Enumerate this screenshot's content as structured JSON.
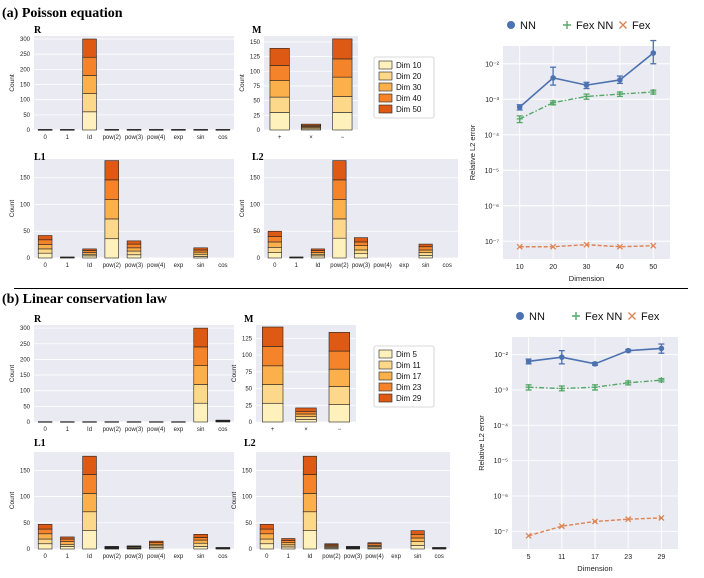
{
  "section_a": {
    "title": "(a) Poisson equation"
  },
  "section_b": {
    "title": "(b) Linear conservation law"
  },
  "ops_unary": [
    "0",
    "1",
    "Id",
    "pow(2)",
    "pow(3)",
    "pow(4)",
    "exp",
    "sin",
    "cos"
  ],
  "ops_binary": [
    "+",
    "×",
    "−"
  ],
  "count_label": "Count",
  "colors": {
    "stack": [
      "#fff1bb",
      "#fdd78a",
      "#fbb04c",
      "#f5832a",
      "#de5a14"
    ],
    "nn": "#4c72b0",
    "fexnn": "#55a868",
    "fex": "#dd8452",
    "panel_bg": "#eaeaf2",
    "grid": "#ffffff",
    "edge": "#222222"
  },
  "chart_data": [
    {
      "id": "a_R",
      "type": "bar",
      "stacked": true,
      "title": "R",
      "ylabel": "Count",
      "categories": [
        "0",
        "1",
        "Id",
        "pow(2)",
        "pow(3)",
        "pow(4)",
        "exp",
        "sin",
        "cos"
      ],
      "ylim": [
        0,
        310
      ],
      "yticks": [
        0,
        50,
        100,
        150,
        200,
        250,
        300
      ],
      "series": [
        {
          "name": "Dim 10",
          "values": [
            1,
            1,
            60,
            1,
            1,
            1,
            1,
            1,
            1
          ]
        },
        {
          "name": "Dim 20",
          "values": [
            0,
            0,
            60,
            0,
            0,
            0,
            0,
            0,
            0
          ]
        },
        {
          "name": "Dim 30",
          "values": [
            0,
            0,
            60,
            0,
            0,
            0,
            0,
            0,
            0
          ]
        },
        {
          "name": "Dim 40",
          "values": [
            1,
            1,
            60,
            1,
            1,
            1,
            1,
            1,
            1
          ]
        },
        {
          "name": "Dim 50",
          "values": [
            0,
            0,
            60,
            0,
            0,
            0,
            0,
            0,
            0
          ]
        }
      ]
    },
    {
      "id": "a_M",
      "type": "bar",
      "stacked": true,
      "title": "M",
      "ylabel": "Count",
      "categories": [
        "+",
        "×",
        "−"
      ],
      "ylim": [
        0,
        160
      ],
      "yticks": [
        0,
        25,
        50,
        75,
        100,
        125,
        150
      ],
      "series": [
        {
          "name": "Dim 10",
          "values": [
            30,
            2,
            30
          ]
        },
        {
          "name": "Dim 20",
          "values": [
            26,
            2,
            27
          ]
        },
        {
          "name": "Dim 30",
          "values": [
            28,
            2,
            33
          ]
        },
        {
          "name": "Dim 40",
          "values": [
            26,
            2,
            31
          ]
        },
        {
          "name": "Dim 50",
          "values": [
            29,
            2,
            34
          ]
        }
      ]
    },
    {
      "id": "a_L1",
      "type": "bar",
      "stacked": true,
      "title": "L1",
      "ylabel": "Count",
      "categories": [
        "0",
        "1",
        "Id",
        "pow(2)",
        "pow(3)",
        "pow(4)",
        "exp",
        "sin",
        "cos"
      ],
      "ylim": [
        0,
        185
      ],
      "yticks": [
        0,
        50,
        100,
        150
      ],
      "series": [
        {
          "name": "Dim 10",
          "values": [
            9,
            0,
            4,
            36,
            6,
            0,
            0,
            3,
            0
          ]
        },
        {
          "name": "Dim 20",
          "values": [
            8,
            1,
            3,
            37,
            7,
            0,
            0,
            4,
            0
          ]
        },
        {
          "name": "Dim 30",
          "values": [
            8,
            0,
            3,
            36,
            6,
            0,
            0,
            4,
            0
          ]
        },
        {
          "name": "Dim 40",
          "values": [
            9,
            1,
            4,
            37,
            7,
            0,
            0,
            4,
            0
          ]
        },
        {
          "name": "Dim 50",
          "values": [
            8,
            0,
            3,
            36,
            6,
            0,
            0,
            4,
            0
          ]
        }
      ]
    },
    {
      "id": "a_L2",
      "type": "bar",
      "stacked": true,
      "title": "L2",
      "ylabel": "Count",
      "categories": [
        "0",
        "1",
        "Id",
        "pow(2)",
        "pow(3)",
        "pow(4)",
        "exp",
        "sin",
        "cos"
      ],
      "ylim": [
        0,
        185
      ],
      "yticks": [
        0,
        50,
        100,
        150
      ],
      "series": [
        {
          "name": "Dim 10",
          "values": [
            10,
            1,
            4,
            37,
            8,
            0,
            0,
            5,
            0
          ]
        },
        {
          "name": "Dim 20",
          "values": [
            10,
            0,
            3,
            36,
            7,
            0,
            0,
            5,
            0
          ]
        },
        {
          "name": "Dim 30",
          "values": [
            10,
            1,
            3,
            36,
            8,
            0,
            0,
            5,
            0
          ]
        },
        {
          "name": "Dim 40",
          "values": [
            10,
            0,
            4,
            37,
            7,
            0,
            0,
            6,
            0
          ]
        },
        {
          "name": "Dim 50",
          "values": [
            10,
            0,
            3,
            36,
            8,
            0,
            0,
            5,
            0
          ]
        }
      ]
    },
    {
      "id": "a_err",
      "type": "line",
      "ylabel": "Relative L2 error",
      "xlabel": "Dimension",
      "x": [
        10,
        20,
        30,
        40,
        50
      ],
      "yscale": "log",
      "series": [
        {
          "name": "NN",
          "values": [
            0.0006,
            0.004,
            0.0025,
            0.0035,
            0.02
          ],
          "err_low": [
            0.0005,
            0.0025,
            0.002,
            0.0028,
            0.01
          ],
          "err_high": [
            0.0007,
            0.008,
            0.003,
            0.0045,
            0.045
          ]
        },
        {
          "name": "Fex NN",
          "values": [
            0.00028,
            0.0008,
            0.0012,
            0.0014,
            0.0016
          ],
          "err_low": [
            0.00022,
            0.0007,
            0.001,
            0.0012,
            0.0014
          ],
          "err_high": [
            0.00034,
            0.0009,
            0.0014,
            0.0016,
            0.0018
          ]
        },
        {
          "name": "Fex",
          "values": [
            7e-08,
            7e-08,
            8e-08,
            7e-08,
            7.5e-08
          ]
        }
      ],
      "yticks": [
        "10⁻²",
        "10⁻³",
        "10⁻⁴",
        "10⁻⁵",
        "10⁻⁶",
        "10⁻⁷"
      ]
    },
    {
      "id": "b_R",
      "type": "bar",
      "stacked": true,
      "title": "R",
      "ylabel": "Count",
      "categories": [
        "0",
        "1",
        "Id",
        "pow(2)",
        "pow(3)",
        "pow(4)",
        "exp",
        "sin",
        "cos"
      ],
      "ylim": [
        0,
        310
      ],
      "yticks": [
        0,
        50,
        100,
        150,
        200,
        250,
        300
      ],
      "series": [
        {
          "name": "Dim 5",
          "values": [
            1,
            1,
            1,
            1,
            1,
            1,
            1,
            60,
            2
          ]
        },
        {
          "name": "Dim 11",
          "values": [
            0,
            0,
            0,
            0,
            0,
            0,
            0,
            60,
            1
          ]
        },
        {
          "name": "Dim 17",
          "values": [
            0,
            0,
            0,
            0,
            0,
            0,
            0,
            60,
            1
          ]
        },
        {
          "name": "Dim 23",
          "values": [
            0,
            0,
            0,
            0,
            0,
            0,
            0,
            60,
            1
          ]
        },
        {
          "name": "Dim 29",
          "values": [
            0,
            0,
            0,
            0,
            0,
            0,
            0,
            60,
            1
          ]
        }
      ]
    },
    {
      "id": "b_M",
      "type": "bar",
      "stacked": true,
      "title": "M",
      "ylabel": "Count",
      "categories": [
        "+",
        "×",
        "−"
      ],
      "ylim": [
        0,
        145
      ],
      "yticks": [
        0,
        25,
        50,
        75,
        100,
        125
      ],
      "series": [
        {
          "name": "Dim 5",
          "values": [
            28,
            4,
            26
          ]
        },
        {
          "name": "Dim 11",
          "values": [
            28,
            4,
            27
          ]
        },
        {
          "name": "Dim 17",
          "values": [
            28,
            4,
            26
          ]
        },
        {
          "name": "Dim 23",
          "values": [
            29,
            4,
            27
          ]
        },
        {
          "name": "Dim 29",
          "values": [
            29,
            5,
            28
          ]
        }
      ]
    },
    {
      "id": "b_L1",
      "type": "bar",
      "stacked": true,
      "title": "L1",
      "ylabel": "Count",
      "categories": [
        "0",
        "1",
        "Id",
        "pow(2)",
        "pow(3)",
        "pow(4)",
        "exp",
        "sin",
        "cos"
      ],
      "ylim": [
        0,
        185
      ],
      "yticks": [
        0,
        50,
        100,
        150
      ],
      "series": [
        {
          "name": "Dim 5",
          "values": [
            10,
            5,
            35,
            1,
            1,
            3,
            0,
            5,
            1
          ]
        },
        {
          "name": "Dim 11",
          "values": [
            9,
            4,
            36,
            1,
            1,
            3,
            0,
            6,
            0
          ]
        },
        {
          "name": "Dim 17",
          "values": [
            10,
            5,
            35,
            1,
            2,
            3,
            0,
            6,
            1
          ]
        },
        {
          "name": "Dim 23",
          "values": [
            9,
            5,
            36,
            1,
            1,
            3,
            0,
            5,
            0
          ]
        },
        {
          "name": "Dim 29",
          "values": [
            9,
            4,
            35,
            1,
            1,
            3,
            0,
            6,
            1
          ]
        }
      ]
    },
    {
      "id": "b_L2",
      "type": "bar",
      "stacked": true,
      "title": "L2",
      "ylabel": "Count",
      "categories": [
        "0",
        "1",
        "Id",
        "pow(2)",
        "pow(3)",
        "pow(4)",
        "exp",
        "sin",
        "cos"
      ],
      "ylim": [
        0,
        185
      ],
      "yticks": [
        0,
        50,
        100,
        150
      ],
      "series": [
        {
          "name": "Dim 5",
          "values": [
            10,
            4,
            35,
            2,
            1,
            2,
            0,
            7,
            1
          ]
        },
        {
          "name": "Dim 11",
          "values": [
            9,
            4,
            36,
            2,
            1,
            3,
            0,
            7,
            0
          ]
        },
        {
          "name": "Dim 17",
          "values": [
            10,
            4,
            35,
            2,
            1,
            2,
            0,
            7,
            1
          ]
        },
        {
          "name": "Dim 23",
          "values": [
            9,
            4,
            36,
            2,
            1,
            3,
            0,
            7,
            0
          ]
        },
        {
          "name": "Dim 29",
          "values": [
            9,
            4,
            35,
            2,
            1,
            2,
            0,
            7,
            1
          ]
        }
      ]
    },
    {
      "id": "b_err",
      "type": "line",
      "ylabel": "Relative L2 error",
      "xlabel": "Dimension",
      "x": [
        5,
        11,
        17,
        23,
        29
      ],
      "yscale": "log",
      "series": [
        {
          "name": "NN",
          "values": [
            0.0065,
            0.0085,
            0.0055,
            0.013,
            0.015
          ],
          "err_low": [
            0.0055,
            0.0055,
            0.005,
            0.012,
            0.011
          ],
          "err_high": [
            0.0075,
            0.013,
            0.006,
            0.014,
            0.02
          ]
        },
        {
          "name": "Fex NN",
          "values": [
            0.0012,
            0.0011,
            0.0012,
            0.0016,
            0.0019
          ],
          "err_low": [
            0.001,
            0.00095,
            0.001,
            0.0014,
            0.0017
          ],
          "err_high": [
            0.0014,
            0.0013,
            0.0014,
            0.0018,
            0.0021
          ]
        },
        {
          "name": "Fex",
          "values": [
            7.5e-08,
            1.4e-07,
            1.9e-07,
            2.2e-07,
            2.4e-07
          ]
        }
      ],
      "yticks": [
        "10⁻²",
        "10⁻³",
        "10⁻⁴",
        "10⁻⁵",
        "10⁻⁶",
        "10⁻⁷"
      ]
    }
  ]
}
